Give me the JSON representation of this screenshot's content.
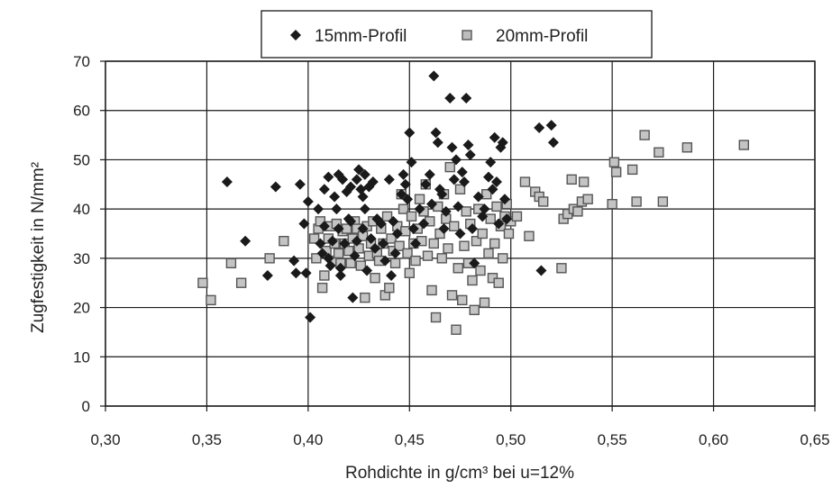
{
  "chart_data": {
    "type": "scatter",
    "xlabel": "Rohdichte  in g/cm³ bei u=12%",
    "ylabel": "Zugfestigkeit in N/mm²",
    "xlim": [
      0.3,
      0.65
    ],
    "ylim": [
      0,
      70
    ],
    "x_ticks": [
      "0,30",
      "0,35",
      "0,40",
      "0,45",
      "0,50",
      "0,55",
      "0,60",
      "0,65"
    ],
    "y_ticks": [
      "0",
      "10",
      "20",
      "30",
      "40",
      "50",
      "60",
      "70"
    ],
    "grid": true,
    "legend": "top-center",
    "series": [
      {
        "name": "15mm-Profil",
        "marker": "diamond",
        "color": "#1a1a1a",
        "points": [
          [
            0.36,
            45.5
          ],
          [
            0.369,
            33.5
          ],
          [
            0.38,
            26.5
          ],
          [
            0.384,
            44.5
          ],
          [
            0.393,
            29.5
          ],
          [
            0.394,
            27.0
          ],
          [
            0.396,
            45.0
          ],
          [
            0.398,
            37.0
          ],
          [
            0.399,
            27.0
          ],
          [
            0.4,
            41.5
          ],
          [
            0.401,
            18.0
          ],
          [
            0.405,
            40.0
          ],
          [
            0.406,
            33.0
          ],
          [
            0.407,
            31.0
          ],
          [
            0.408,
            44.0
          ],
          [
            0.408,
            36.5
          ],
          [
            0.41,
            46.5
          ],
          [
            0.41,
            30.0
          ],
          [
            0.411,
            28.5
          ],
          [
            0.412,
            33.5
          ],
          [
            0.413,
            42.5
          ],
          [
            0.414,
            40.0
          ],
          [
            0.415,
            47.0
          ],
          [
            0.415,
            36.0
          ],
          [
            0.416,
            28.0
          ],
          [
            0.416,
            26.5
          ],
          [
            0.417,
            46.0
          ],
          [
            0.418,
            33.0
          ],
          [
            0.419,
            43.5
          ],
          [
            0.42,
            38.0
          ],
          [
            0.421,
            44.5
          ],
          [
            0.421,
            37.5
          ],
          [
            0.422,
            22.0
          ],
          [
            0.423,
            30.5
          ],
          [
            0.424,
            46.0
          ],
          [
            0.424,
            33.5
          ],
          [
            0.425,
            48.0
          ],
          [
            0.426,
            44.0
          ],
          [
            0.427,
            42.5
          ],
          [
            0.427,
            36.0
          ],
          [
            0.428,
            47.0
          ],
          [
            0.428,
            40.0
          ],
          [
            0.429,
            27.5
          ],
          [
            0.43,
            44.5
          ],
          [
            0.431,
            34.0
          ],
          [
            0.432,
            45.5
          ],
          [
            0.433,
            32.0
          ],
          [
            0.434,
            38.0
          ],
          [
            0.436,
            37.0
          ],
          [
            0.437,
            33.0
          ],
          [
            0.438,
            29.5
          ],
          [
            0.44,
            46.0
          ],
          [
            0.441,
            26.5
          ],
          [
            0.442,
            37.5
          ],
          [
            0.443,
            31.0
          ],
          [
            0.444,
            35.0
          ],
          [
            0.446,
            43.0
          ],
          [
            0.447,
            47.0
          ],
          [
            0.448,
            45.0
          ],
          [
            0.449,
            42.0
          ],
          [
            0.45,
            55.5
          ],
          [
            0.451,
            49.5
          ],
          [
            0.452,
            36.0
          ],
          [
            0.453,
            33.0
          ],
          [
            0.455,
            40.0
          ],
          [
            0.457,
            37.0
          ],
          [
            0.458,
            45.0
          ],
          [
            0.46,
            47.0
          ],
          [
            0.461,
            41.0
          ],
          [
            0.462,
            67.0
          ],
          [
            0.463,
            55.5
          ],
          [
            0.464,
            53.5
          ],
          [
            0.465,
            44.0
          ],
          [
            0.466,
            43.0
          ],
          [
            0.467,
            36.0
          ],
          [
            0.468,
            39.5
          ],
          [
            0.47,
            62.5
          ],
          [
            0.471,
            52.5
          ],
          [
            0.472,
            46.0
          ],
          [
            0.473,
            50.0
          ],
          [
            0.474,
            40.5
          ],
          [
            0.475,
            35.0
          ],
          [
            0.476,
            47.5
          ],
          [
            0.477,
            45.5
          ],
          [
            0.478,
            62.5
          ],
          [
            0.479,
            53.0
          ],
          [
            0.48,
            51.0
          ],
          [
            0.481,
            36.0
          ],
          [
            0.482,
            29.0
          ],
          [
            0.484,
            42.5
          ],
          [
            0.486,
            38.5
          ],
          [
            0.487,
            40.0
          ],
          [
            0.489,
            46.5
          ],
          [
            0.49,
            49.5
          ],
          [
            0.491,
            44.0
          ],
          [
            0.492,
            54.5
          ],
          [
            0.493,
            45.5
          ],
          [
            0.494,
            37.0
          ],
          [
            0.495,
            52.5
          ],
          [
            0.496,
            53.5
          ],
          [
            0.497,
            42.0
          ],
          [
            0.498,
            38.0
          ],
          [
            0.514,
            56.5
          ],
          [
            0.515,
            27.5
          ],
          [
            0.52,
            57.0
          ],
          [
            0.521,
            53.5
          ]
        ]
      },
      {
        "name": "20mm-Profil",
        "marker": "square",
        "color": "#8a8a8a",
        "points": [
          [
            0.348,
            25.0
          ],
          [
            0.352,
            21.5
          ],
          [
            0.362,
            29.0
          ],
          [
            0.367,
            25.0
          ],
          [
            0.381,
            30.0
          ],
          [
            0.388,
            33.5
          ],
          [
            0.403,
            34.0
          ],
          [
            0.404,
            30.0
          ],
          [
            0.405,
            36.0
          ],
          [
            0.406,
            37.5
          ],
          [
            0.407,
            24.0
          ],
          [
            0.408,
            26.5
          ],
          [
            0.409,
            31.5
          ],
          [
            0.41,
            34.0
          ],
          [
            0.411,
            36.5
          ],
          [
            0.412,
            29.5
          ],
          [
            0.413,
            33.0
          ],
          [
            0.414,
            37.0
          ],
          [
            0.415,
            31.0
          ],
          [
            0.416,
            29.0
          ],
          [
            0.417,
            35.5
          ],
          [
            0.418,
            33.0
          ],
          [
            0.419,
            36.0
          ],
          [
            0.42,
            31.5
          ],
          [
            0.421,
            29.0
          ],
          [
            0.422,
            34.0
          ],
          [
            0.423,
            37.5
          ],
          [
            0.424,
            36.0
          ],
          [
            0.425,
            32.0
          ],
          [
            0.426,
            28.5
          ],
          [
            0.427,
            34.5
          ],
          [
            0.428,
            22.0
          ],
          [
            0.429,
            36.5
          ],
          [
            0.43,
            30.5
          ],
          [
            0.431,
            33.0
          ],
          [
            0.432,
            37.5
          ],
          [
            0.433,
            26.0
          ],
          [
            0.434,
            31.0
          ],
          [
            0.435,
            29.5
          ],
          [
            0.436,
            36.0
          ],
          [
            0.437,
            33.0
          ],
          [
            0.438,
            22.5
          ],
          [
            0.439,
            38.5
          ],
          [
            0.44,
            24.0
          ],
          [
            0.441,
            34.0
          ],
          [
            0.442,
            31.5
          ],
          [
            0.443,
            29.0
          ],
          [
            0.444,
            36.5
          ],
          [
            0.445,
            32.5
          ],
          [
            0.446,
            43.0
          ],
          [
            0.447,
            40.0
          ],
          [
            0.448,
            35.5
          ],
          [
            0.449,
            31.0
          ],
          [
            0.45,
            27.0
          ],
          [
            0.451,
            38.5
          ],
          [
            0.452,
            33.0
          ],
          [
            0.453,
            29.5
          ],
          [
            0.454,
            36.0
          ],
          [
            0.455,
            42.0
          ],
          [
            0.456,
            33.5
          ],
          [
            0.457,
            39.5
          ],
          [
            0.458,
            45.0
          ],
          [
            0.459,
            30.5
          ],
          [
            0.46,
            37.5
          ],
          [
            0.461,
            23.5
          ],
          [
            0.462,
            33.0
          ],
          [
            0.463,
            18.0
          ],
          [
            0.464,
            40.5
          ],
          [
            0.465,
            35.0
          ],
          [
            0.466,
            30.0
          ],
          [
            0.467,
            43.0
          ],
          [
            0.468,
            38.0
          ],
          [
            0.469,
            32.0
          ],
          [
            0.47,
            48.5
          ],
          [
            0.471,
            22.5
          ],
          [
            0.472,
            36.5
          ],
          [
            0.473,
            15.5
          ],
          [
            0.474,
            28.0
          ],
          [
            0.475,
            44.0
          ],
          [
            0.476,
            21.5
          ],
          [
            0.477,
            32.5
          ],
          [
            0.478,
            39.5
          ],
          [
            0.479,
            29.0
          ],
          [
            0.48,
            37.0
          ],
          [
            0.481,
            25.5
          ],
          [
            0.482,
            19.5
          ],
          [
            0.483,
            33.5
          ],
          [
            0.484,
            40.0
          ],
          [
            0.485,
            27.5
          ],
          [
            0.486,
            35.0
          ],
          [
            0.487,
            21.0
          ],
          [
            0.488,
            43.0
          ],
          [
            0.489,
            31.0
          ],
          [
            0.49,
            38.0
          ],
          [
            0.491,
            26.0
          ],
          [
            0.492,
            33.0
          ],
          [
            0.493,
            40.5
          ],
          [
            0.494,
            25.0
          ],
          [
            0.495,
            36.5
          ],
          [
            0.496,
            30.0
          ],
          [
            0.497,
            38.5
          ],
          [
            0.498,
            41.0
          ],
          [
            0.499,
            35.0
          ],
          [
            0.5,
            37.5
          ],
          [
            0.503,
            38.5
          ],
          [
            0.507,
            45.5
          ],
          [
            0.509,
            34.5
          ],
          [
            0.512,
            43.5
          ],
          [
            0.514,
            42.5
          ],
          [
            0.516,
            41.5
          ],
          [
            0.525,
            28.0
          ],
          [
            0.526,
            38.0
          ],
          [
            0.528,
            39.0
          ],
          [
            0.53,
            46.0
          ],
          [
            0.531,
            40.0
          ],
          [
            0.533,
            39.5
          ],
          [
            0.535,
            41.5
          ],
          [
            0.536,
            45.5
          ],
          [
            0.538,
            42.0
          ],
          [
            0.55,
            41.0
          ],
          [
            0.551,
            49.5
          ],
          [
            0.552,
            47.5
          ],
          [
            0.56,
            48.0
          ],
          [
            0.562,
            41.5
          ],
          [
            0.566,
            55.0
          ],
          [
            0.573,
            51.5
          ],
          [
            0.575,
            41.5
          ],
          [
            0.587,
            52.5
          ],
          [
            0.615,
            53.0
          ]
        ]
      }
    ]
  }
}
